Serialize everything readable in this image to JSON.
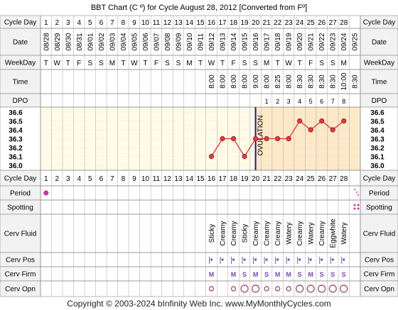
{
  "title": "BBT Chart (C º) for Cycle August 28, 2012  [Converted from Fº]",
  "footer": "Copyright © 2003-2024 bInfinity Web Inc.    www.MyMonthlyCycles.com",
  "row_labels": {
    "cycle_day": "Cycle Day",
    "date": "Date",
    "weekday": "WeekDay",
    "time": "Time",
    "dpo": "DPO",
    "period": "Period",
    "spotting": "Spotting",
    "cerv_fluid": "Cerv Fluid",
    "cerv_pos": "Cerv Pos",
    "cerv_firm": "Cerv Firm",
    "cerv_opn": "Cerv Opn"
  },
  "colors": {
    "chart_bg_pre": "#fffbe8",
    "chart_bg_post": "#fde8c8",
    "header_bg": "#f2f2f2",
    "temp_line": "#d33a3a",
    "temp_dot": "#e33b3b",
    "coverline": "#1a1a8c",
    "accent_magenta": "#cc33aa"
  },
  "days": [
    {
      "day": "1",
      "date": "08/28",
      "wd": "T"
    },
    {
      "day": "2",
      "date": "08/29",
      "wd": "W"
    },
    {
      "day": "3",
      "date": "08/30",
      "wd": "T"
    },
    {
      "day": "4",
      "date": "08/31",
      "wd": "F"
    },
    {
      "day": "5",
      "date": "09/01",
      "wd": "S"
    },
    {
      "day": "6",
      "date": "09/02",
      "wd": "S"
    },
    {
      "day": "7",
      "date": "09/03",
      "wd": "M"
    },
    {
      "day": "8",
      "date": "09/04",
      "wd": "T"
    },
    {
      "day": "9",
      "date": "09/05",
      "wd": "W"
    },
    {
      "day": "10",
      "date": "09/06",
      "wd": "T"
    },
    {
      "day": "11",
      "date": "09/07",
      "wd": "F"
    },
    {
      "day": "12",
      "date": "09/08",
      "wd": "S"
    },
    {
      "day": "13",
      "date": "09/09",
      "wd": "S"
    },
    {
      "day": "14",
      "date": "09/10",
      "wd": "M"
    },
    {
      "day": "15",
      "date": "09/11",
      "wd": "T"
    },
    {
      "day": "16",
      "date": "09/12",
      "wd": "W"
    },
    {
      "day": "17",
      "date": "09/13",
      "wd": "T"
    },
    {
      "day": "18",
      "date": "09/14",
      "wd": "F"
    },
    {
      "day": "19",
      "date": "09/15",
      "wd": "S"
    },
    {
      "day": "20",
      "date": "09/16",
      "wd": "S"
    },
    {
      "day": "21",
      "date": "09/17",
      "wd": "M"
    },
    {
      "day": "22",
      "date": "09/18",
      "wd": "T"
    },
    {
      "day": "23",
      "date": "09/19",
      "wd": "W"
    },
    {
      "day": "24",
      "date": "09/20",
      "wd": "T"
    },
    {
      "day": "25",
      "date": "09/21",
      "wd": "F"
    },
    {
      "day": "26",
      "date": "09/22",
      "wd": "S"
    },
    {
      "day": "27",
      "date": "09/23",
      "wd": "S"
    },
    {
      "day": "28",
      "date": "09/24",
      "wd": "M"
    },
    {
      "day": "",
      "date": "09/25",
      "wd": ""
    }
  ],
  "times": [
    "",
    "",
    "",
    "",
    "",
    "",
    "",
    "",
    "",
    "",
    "",
    "",
    "",
    "",
    "",
    "8:00",
    "8:00",
    "8:00",
    "8:00",
    "9:00",
    "8:00",
    "8:25",
    "8:00",
    "8:30",
    "8:30",
    "8:30",
    "8:30",
    "10:00",
    "8:30"
  ],
  "dpo": [
    "",
    "",
    "",
    "",
    "",
    "",
    "",
    "",
    "",
    "",
    "",
    "",
    "",
    "",
    "",
    "",
    "",
    "",
    "",
    "",
    "1",
    "2",
    "3",
    "4",
    "5",
    "6",
    "7",
    "8"
  ],
  "fluid": [
    "",
    "",
    "",
    "",
    "",
    "",
    "",
    "",
    "",
    "",
    "",
    "",
    "",
    "",
    "",
    "Sticky",
    "Creamy",
    "Creamy",
    "Sticky",
    "Creamy",
    "Creamy",
    "Creamy",
    "Watery",
    "Creamy",
    "Watery",
    "Creamy",
    "Eggwhite",
    "Watery"
  ],
  "firm": [
    "",
    "",
    "",
    "",
    "",
    "",
    "",
    "",
    "",
    "",
    "",
    "",
    "",
    "",
    "",
    "M",
    "",
    "M",
    "S",
    "M",
    "S",
    "M",
    "M",
    "S",
    "M",
    "S",
    "S",
    "S"
  ],
  "pos_marks": [
    16,
    17,
    18,
    19,
    20,
    21,
    22,
    23,
    24,
    25,
    26,
    27,
    28
  ],
  "opn_marks": [
    {
      "day": 16,
      "size": "small"
    },
    {
      "day": 18,
      "size": "small"
    },
    {
      "day": 19,
      "size": "large"
    },
    {
      "day": 20,
      "size": "large"
    },
    {
      "day": 21,
      "size": "small"
    },
    {
      "day": 22,
      "size": "small"
    },
    {
      "day": 23,
      "size": "small"
    },
    {
      "day": 24,
      "size": "large"
    },
    {
      "day": 25,
      "size": "large"
    },
    {
      "day": 26,
      "size": "large"
    },
    {
      "day": 27,
      "size": "large"
    },
    {
      "day": 28,
      "size": "large"
    }
  ],
  "period_days": [
    1
  ],
  "ovulation_label": "OVULATION",
  "chart_data": {
    "type": "line",
    "title": "BBT Chart (C º) for Cycle August 28, 2012  [Converted from Fº]",
    "xlabel": "Cycle Day",
    "ylabel": "",
    "ylim": [
      36.0,
      36.6
    ],
    "y_ticks": [
      "36.6",
      "36.5",
      "36.4",
      "36.3",
      "36.2",
      "36.1",
      "36.0"
    ],
    "ovulation_day": 20,
    "series": [
      {
        "x": [
          16,
          17,
          18,
          19,
          20,
          21,
          22,
          23,
          24,
          25,
          26,
          27,
          28
        ],
        "values": [
          36.1,
          36.3,
          36.3,
          36.1,
          36.3,
          36.3,
          36.3,
          36.3,
          36.5,
          36.4,
          36.5,
          36.4,
          36.5
        ]
      }
    ]
  }
}
